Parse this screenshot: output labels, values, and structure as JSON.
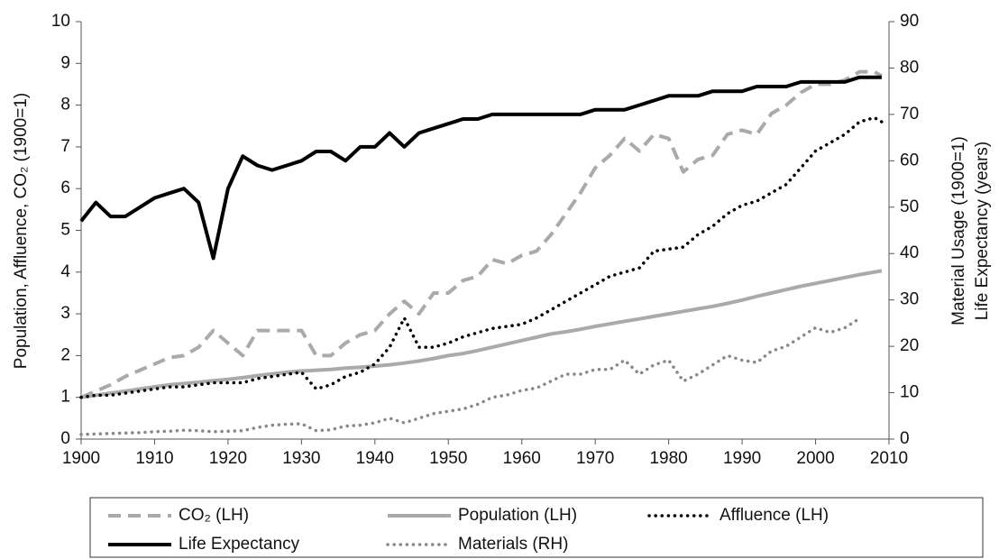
{
  "chart_data": {
    "type": "line",
    "y_label": "Population, Affluence, CO₂  (1900=1)",
    "y2_label": [
      "Material Usage (1900=1)",
      "Life Expectancy  (years)"
    ],
    "x": [
      1900,
      1902,
      1904,
      1906,
      1908,
      1910,
      1912,
      1914,
      1916,
      1918,
      1920,
      1922,
      1924,
      1926,
      1928,
      1930,
      1932,
      1934,
      1936,
      1938,
      1940,
      1942,
      1944,
      1946,
      1948,
      1950,
      1952,
      1954,
      1956,
      1958,
      1960,
      1962,
      1964,
      1966,
      1968,
      1970,
      1972,
      1974,
      1976,
      1978,
      1980,
      1982,
      1984,
      1986,
      1988,
      1990,
      1992,
      1994,
      1996,
      1998,
      2000,
      2002,
      2004,
      2006,
      2008,
      2009
    ],
    "xlim": [
      1900,
      2010
    ],
    "xticks": [
      1900,
      1910,
      1920,
      1930,
      1940,
      1950,
      1960,
      1970,
      1980,
      1990,
      2000,
      2010
    ],
    "ylim": [
      0,
      10
    ],
    "yticks": [
      0,
      1,
      2,
      3,
      4,
      5,
      6,
      7,
      8,
      9,
      10
    ],
    "y2lim": [
      0,
      90
    ],
    "y2ticks": [
      0,
      10,
      20,
      30,
      40,
      50,
      60,
      70,
      80,
      90
    ],
    "series": [
      {
        "name": "CO₂  (LH)",
        "color": "#aaaaaa",
        "style": "dashed",
        "values": [
          1,
          1.15,
          1.3,
          1.5,
          1.65,
          1.8,
          1.95,
          2.0,
          2.2,
          2.6,
          2.3,
          2.0,
          2.6,
          2.6,
          2.6,
          2.6,
          2.0,
          2.0,
          2.3,
          2.5,
          2.6,
          3.0,
          3.3,
          3.0,
          3.5,
          3.5,
          3.8,
          3.9,
          4.3,
          4.2,
          4.4,
          4.5,
          4.9,
          5.4,
          5.9,
          6.5,
          6.8,
          7.2,
          6.9,
          7.3,
          7.2,
          6.4,
          6.7,
          6.8,
          7.3,
          7.4,
          7.3,
          7.8,
          8.0,
          8.3,
          8.5,
          8.5,
          8.6,
          8.8,
          8.8,
          8.7
        ]
      },
      {
        "name": "Population (LH)",
        "color": "#aaaaaa",
        "style": "solid",
        "values": [
          1,
          1.05,
          1.1,
          1.15,
          1.2,
          1.25,
          1.3,
          1.33,
          1.36,
          1.4,
          1.43,
          1.47,
          1.52,
          1.56,
          1.6,
          1.63,
          1.65,
          1.67,
          1.7,
          1.72,
          1.75,
          1.78,
          1.82,
          1.87,
          1.93,
          2.0,
          2.05,
          2.12,
          2.2,
          2.28,
          2.36,
          2.44,
          2.52,
          2.57,
          2.63,
          2.7,
          2.76,
          2.82,
          2.88,
          2.94,
          3.0,
          3.06,
          3.12,
          3.18,
          3.25,
          3.33,
          3.42,
          3.5,
          3.58,
          3.66,
          3.73,
          3.8,
          3.87,
          3.94,
          4.0,
          4.03
        ]
      },
      {
        "name": "Affluence (LH)",
        "color": "#000000",
        "style": "dotted",
        "values": [
          1,
          1.05,
          1.05,
          1.1,
          1.15,
          1.2,
          1.25,
          1.25,
          1.3,
          1.35,
          1.35,
          1.35,
          1.45,
          1.5,
          1.55,
          1.6,
          1.2,
          1.3,
          1.5,
          1.6,
          1.8,
          2.2,
          2.9,
          2.2,
          2.2,
          2.3,
          2.45,
          2.55,
          2.65,
          2.7,
          2.75,
          2.9,
          3.1,
          3.3,
          3.5,
          3.7,
          3.9,
          4.0,
          4.1,
          4.5,
          4.55,
          4.6,
          4.9,
          5.1,
          5.4,
          5.6,
          5.7,
          5.9,
          6.1,
          6.5,
          6.9,
          7.1,
          7.3,
          7.6,
          7.7,
          7.6
        ]
      },
      {
        "name": "Life Expectancy",
        "color": "#000000",
        "style": "solid",
        "axis": "y2",
        "values": [
          47,
          51,
          48,
          48,
          50,
          52,
          53,
          54,
          51,
          39,
          54,
          61,
          59,
          58,
          59,
          60,
          62,
          62,
          60,
          63,
          63,
          66,
          63,
          66,
          67,
          68,
          69,
          69,
          70,
          70,
          70,
          70,
          70,
          70,
          70,
          71,
          71,
          71,
          72,
          73,
          74,
          74,
          74,
          75,
          75,
          75,
          76,
          76,
          76,
          77,
          77,
          77,
          77,
          78,
          78,
          78
        ]
      },
      {
        "name": "Materials (RH)",
        "color": "#888888",
        "style": "dotted",
        "axis": "y2",
        "values": [
          1,
          1.1,
          1.2,
          1.3,
          1.4,
          1.6,
          1.7,
          1.9,
          1.8,
          1.6,
          1.7,
          1.8,
          2.5,
          3,
          3.2,
          3.3,
          1.8,
          2,
          2.8,
          3,
          3.5,
          4.5,
          3.5,
          4.5,
          5.5,
          6,
          6.5,
          7.5,
          9,
          9.5,
          10.5,
          11,
          12.5,
          14,
          14,
          15,
          15,
          17,
          14,
          16,
          17,
          12.5,
          14,
          16,
          18,
          17,
          16.5,
          19,
          20,
          22,
          24,
          23,
          24,
          26,
          null,
          null
        ]
      }
    ]
  }
}
